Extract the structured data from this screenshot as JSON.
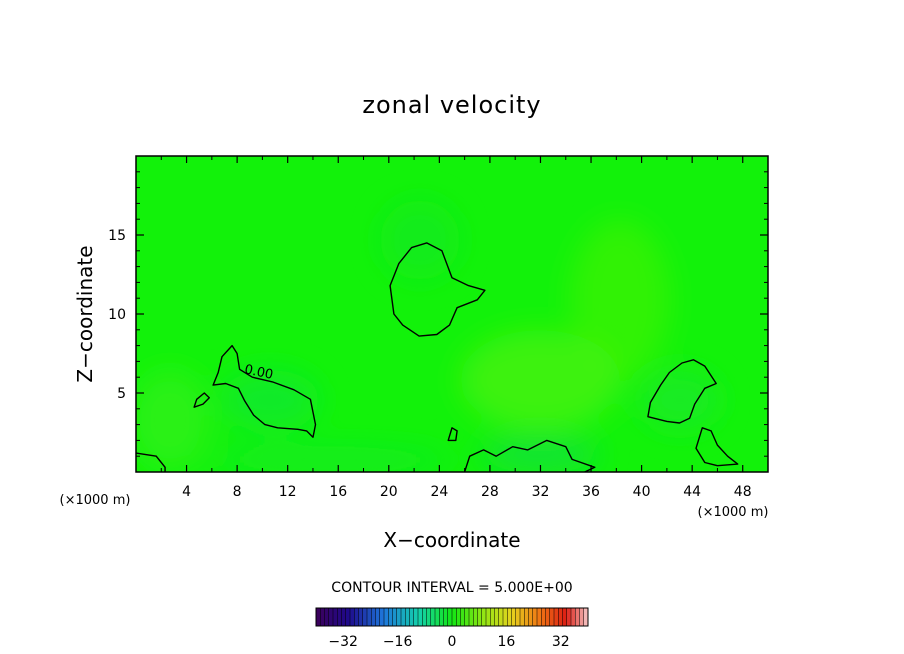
{
  "chart_data": {
    "type": "heatmap",
    "title": "zonal velocity",
    "xlabel": "X−coordinate",
    "ylabel": "Z−coordinate",
    "x_unit_left": "(×1000 m)",
    "x_unit_right": "(×1000 m)",
    "xlim": [
      0,
      50
    ],
    "ylim": [
      0,
      20
    ],
    "xticks": [
      4,
      8,
      12,
      16,
      20,
      24,
      28,
      32,
      36,
      40,
      44,
      48
    ],
    "yticks": [
      5,
      10,
      15
    ],
    "contour_label": "0.00",
    "contour_interval_text": "CONTOUR INTERVAL = 5.000E+00",
    "colorbar": {
      "range": [
        -40,
        40
      ],
      "ticks": [
        -32,
        -16,
        0,
        16,
        32
      ],
      "tick_labels": [
        "−32",
        "−16",
        "0",
        "16",
        "32"
      ]
    },
    "background_color": "#12f20a",
    "contours_zero_level": [
      {
        "name": "central-blob",
        "points": [
          [
            20.4,
            10.0
          ],
          [
            20.1,
            11.8
          ],
          [
            20.8,
            13.2
          ],
          [
            21.8,
            14.2
          ],
          [
            23.0,
            14.5
          ],
          [
            24.2,
            14.0
          ],
          [
            25.0,
            12.3
          ],
          [
            26.3,
            11.8
          ],
          [
            27.6,
            11.5
          ],
          [
            27.0,
            10.9
          ],
          [
            25.4,
            10.4
          ],
          [
            24.8,
            9.3
          ],
          [
            23.8,
            8.7
          ],
          [
            22.4,
            8.6
          ],
          [
            21.1,
            9.3
          ]
        ]
      },
      {
        "name": "left-blob",
        "points": [
          [
            6.1,
            5.5
          ],
          [
            6.5,
            6.3
          ],
          [
            6.8,
            7.3
          ],
          [
            7.6,
            8.0
          ],
          [
            8.0,
            7.5
          ],
          [
            8.2,
            6.5
          ],
          [
            9.2,
            6.0
          ],
          [
            10.8,
            5.7
          ],
          [
            12.5,
            5.2
          ],
          [
            13.8,
            4.6
          ],
          [
            14.2,
            3.0
          ],
          [
            14.0,
            2.2
          ],
          [
            13.5,
            2.6
          ],
          [
            12.8,
            2.7
          ],
          [
            11.2,
            2.8
          ],
          [
            10.2,
            3.0
          ],
          [
            9.3,
            3.6
          ],
          [
            8.6,
            4.5
          ],
          [
            8.1,
            5.3
          ],
          [
            7.1,
            5.6
          ]
        ]
      },
      {
        "name": "left-small",
        "points": [
          [
            4.6,
            4.1
          ],
          [
            4.8,
            4.6
          ],
          [
            5.4,
            5.0
          ],
          [
            5.8,
            4.7
          ],
          [
            5.3,
            4.3
          ]
        ]
      },
      {
        "name": "right-blob",
        "points": [
          [
            40.5,
            3.5
          ],
          [
            40.7,
            4.4
          ],
          [
            41.5,
            5.5
          ],
          [
            42.2,
            6.3
          ],
          [
            43.2,
            6.9
          ],
          [
            44.1,
            7.1
          ],
          [
            45.0,
            6.7
          ],
          [
            45.9,
            5.6
          ],
          [
            45.0,
            5.3
          ],
          [
            44.2,
            4.3
          ],
          [
            43.8,
            3.4
          ],
          [
            43.0,
            3.1
          ],
          [
            42.0,
            3.2
          ]
        ]
      },
      {
        "name": "mid-small",
        "points": [
          [
            24.7,
            2.0
          ],
          [
            25.0,
            2.8
          ],
          [
            25.4,
            2.6
          ],
          [
            25.3,
            2.0
          ]
        ]
      },
      {
        "name": "right-bottom-small",
        "points": [
          [
            44.3,
            1.5
          ],
          [
            44.8,
            2.8
          ],
          [
            45.5,
            2.6
          ],
          [
            46.0,
            1.7
          ],
          [
            46.8,
            1.0
          ],
          [
            47.6,
            0.5
          ],
          [
            46.0,
            0.4
          ],
          [
            45.0,
            0.6
          ]
        ]
      },
      {
        "name": "lower-right-chain",
        "points": [
          [
            26.0,
            0.0
          ],
          [
            26.4,
            1.0
          ],
          [
            27.5,
            1.4
          ],
          [
            28.5,
            1.0
          ],
          [
            29.8,
            1.6
          ],
          [
            31.0,
            1.4
          ],
          [
            32.5,
            2.0
          ],
          [
            34.0,
            1.6
          ],
          [
            34.5,
            0.8
          ],
          [
            36.3,
            0.3
          ],
          [
            35.5,
            0.0
          ]
        ]
      }
    ]
  }
}
